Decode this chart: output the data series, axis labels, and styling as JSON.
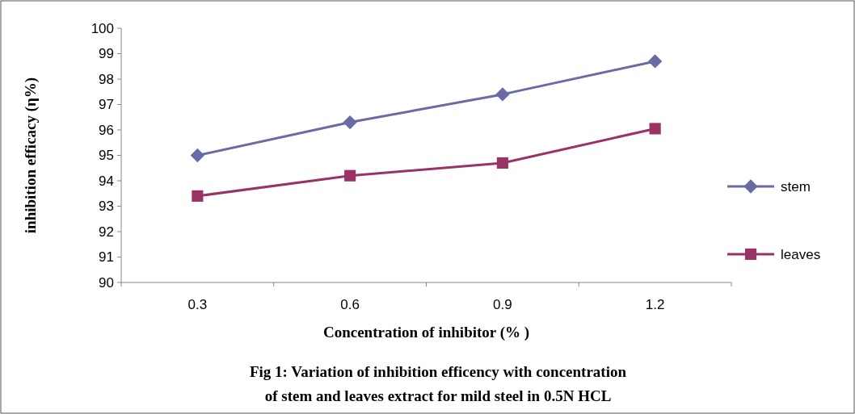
{
  "chart_data": {
    "type": "line",
    "title": "Fig 1: Variation of inhibition efficency with concentration of  stem and leaves extract  for mild steel in 0.5N HCL",
    "xlabel": "Concentration of inhibitor (% )",
    "ylabel": "inhibition efficacy (η%)",
    "categories": [
      "0.3",
      "0.6",
      "0.9",
      "1.2"
    ],
    "ylim": [
      90,
      100
    ],
    "yticks": [
      90,
      91,
      92,
      93,
      94,
      95,
      96,
      97,
      98,
      99,
      100
    ],
    "grid": false,
    "legend": "right",
    "series": [
      {
        "name": "stem",
        "color": "#6a6aa6",
        "marker": "diamond",
        "values": [
          95.0,
          96.3,
          97.4,
          98.7
        ]
      },
      {
        "name": "leaves",
        "color": "#993366",
        "marker": "square",
        "values": [
          93.4,
          94.2,
          94.7,
          96.05
        ]
      }
    ]
  }
}
